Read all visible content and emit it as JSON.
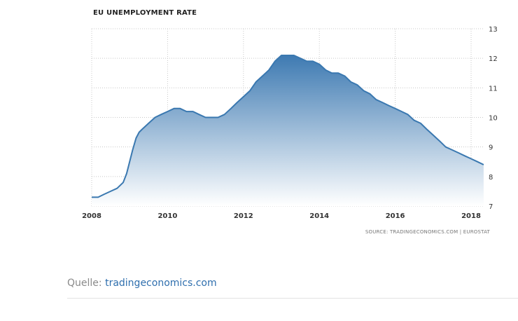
{
  "chart_data": {
    "type": "area",
    "title": "EU UNEMPLOYMENT RATE",
    "xlabel": "",
    "ylabel": "",
    "xlim": [
      2008.0,
      2018.35
    ],
    "ylim": [
      7,
      13
    ],
    "x_ticks": [
      2008,
      2010,
      2012,
      2014,
      2016,
      2018
    ],
    "y_ticks": [
      7,
      8,
      9,
      10,
      11,
      12,
      13
    ],
    "y_axis_side": "right",
    "grid": true,
    "legend": "none",
    "colors": {
      "line": "#3a78b0",
      "fill_top": "#3e7ab2",
      "fill_bottom": "#ffffff"
    },
    "source": "SOURCE: TRADINGECONOMICS.COM | EUROSTAT",
    "series": [
      {
        "x": [
          2008.0,
          2008.17,
          2008.33,
          2008.5,
          2008.67,
          2008.83,
          2008.92,
          2009.0,
          2009.08,
          2009.17,
          2009.25,
          2009.33,
          2009.5,
          2009.67,
          2009.83,
          2010.0,
          2010.17,
          2010.33,
          2010.5,
          2010.67,
          2010.83,
          2011.0,
          2011.17,
          2011.33,
          2011.5,
          2011.67,
          2011.83,
          2012.0,
          2012.17,
          2012.33,
          2012.5,
          2012.67,
          2012.83,
          2013.0,
          2013.17,
          2013.33,
          2013.5,
          2013.67,
          2013.83,
          2014.0,
          2014.17,
          2014.33,
          2014.5,
          2014.67,
          2014.83,
          2015.0,
          2015.17,
          2015.33,
          2015.5,
          2015.67,
          2015.83,
          2016.0,
          2016.17,
          2016.33,
          2016.5,
          2016.67,
          2016.83,
          2017.0,
          2017.17,
          2017.33,
          2017.5,
          2017.67,
          2017.83,
          2018.0,
          2018.17,
          2018.33
        ],
        "values": [
          7.3,
          7.3,
          7.4,
          7.5,
          7.6,
          7.8,
          8.1,
          8.5,
          8.9,
          9.3,
          9.5,
          9.6,
          9.8,
          10.0,
          10.1,
          10.2,
          10.3,
          10.3,
          10.2,
          10.2,
          10.1,
          10.0,
          10.0,
          10.0,
          10.1,
          10.3,
          10.5,
          10.7,
          10.9,
          11.2,
          11.4,
          11.6,
          11.9,
          12.1,
          12.1,
          12.1,
          12.0,
          11.9,
          11.9,
          11.8,
          11.6,
          11.5,
          11.5,
          11.4,
          11.2,
          11.1,
          10.9,
          10.8,
          10.6,
          10.5,
          10.4,
          10.3,
          10.2,
          10.1,
          9.9,
          9.8,
          9.6,
          9.4,
          9.2,
          9.0,
          8.9,
          8.8,
          8.7,
          8.6,
          8.5,
          8.4
        ]
      }
    ]
  },
  "caption": {
    "prefix": "Quelle: ",
    "link_text": "tradingeconomics.com"
  }
}
